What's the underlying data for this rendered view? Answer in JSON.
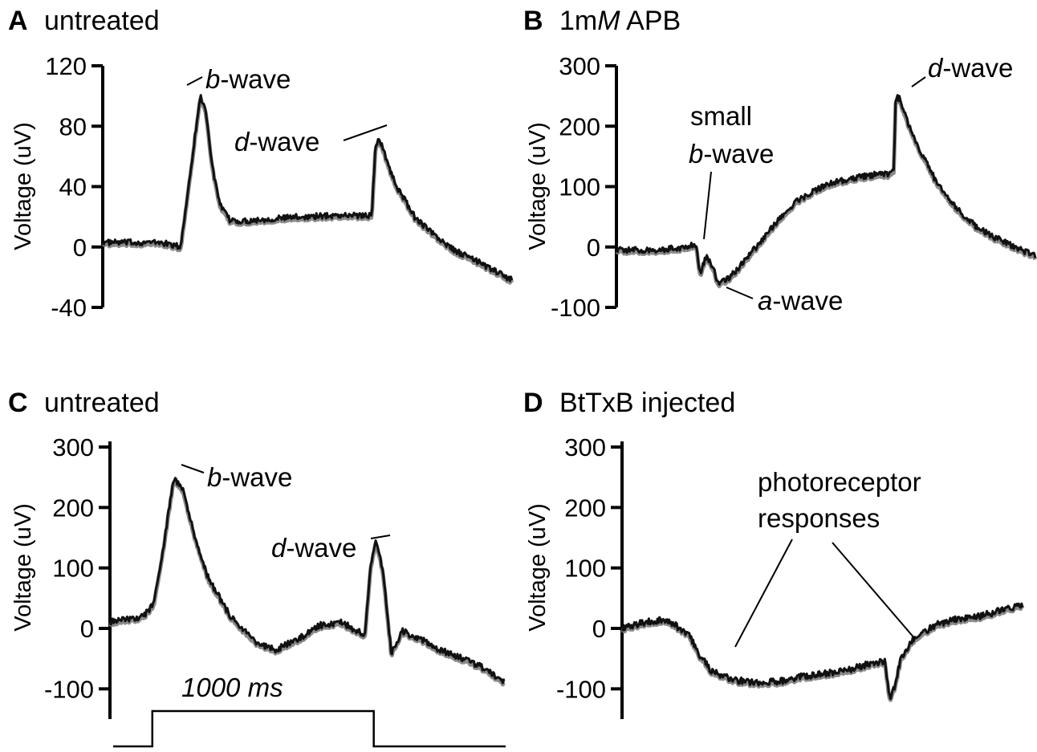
{
  "chart_data": [
    {
      "type": "line",
      "letter": "A",
      "title": "untreated",
      "ylabel": "Voltage (uV)",
      "xlabel": "",
      "ylim": [
        -40,
        120
      ],
      "yticks": [
        -40,
        0,
        40,
        80,
        120
      ],
      "ytick_labels": [
        "-40",
        "0",
        "40",
        "80",
        "120"
      ],
      "x_unit": "ms",
      "xlim": [
        -400,
        1700
      ],
      "grid": false,
      "series": [
        {
          "x": [
            -400,
            -100,
            0,
            60,
            100,
            130,
            160,
            200,
            250,
            300,
            400,
            600,
            800,
            980,
            1000,
            1020,
            1050,
            1100,
            1200,
            1300,
            1400,
            1500,
            1600,
            1700
          ],
          "y": [
            3,
            3,
            0,
            60,
            100,
            90,
            55,
            28,
            18,
            17,
            18,
            20,
            21,
            21,
            68,
            72,
            60,
            42,
            20,
            8,
            -2,
            -8,
            -15,
            -22
          ]
        }
      ],
      "annotations": [
        {
          "italic": "b",
          "text": "-wave"
        },
        {
          "italic": "d",
          "text": "-wave"
        }
      ]
    },
    {
      "type": "line",
      "letter": "B",
      "title": "1m",
      "title_italic": "M",
      "title_rest": " APB",
      "ylabel": "Voltage (uV)",
      "xlabel": "",
      "ylim": [
        -100,
        300
      ],
      "yticks": [
        -100,
        0,
        100,
        200,
        300
      ],
      "ytick_labels": [
        "-100",
        "0",
        "100",
        "200",
        "300"
      ],
      "x_unit": "ms",
      "xlim": [
        -400,
        1700
      ],
      "grid": false,
      "series": [
        {
          "x": [
            -400,
            -200,
            -50,
            0,
            20,
            50,
            80,
            110,
            150,
            200,
            300,
            400,
            500,
            600,
            700,
            800,
            900,
            970,
            990,
            1000,
            1020,
            1050,
            1100,
            1200,
            1300,
            1400,
            1500,
            1600,
            1700
          ],
          "y": [
            -5,
            -5,
            0,
            5,
            -45,
            -15,
            -30,
            -60,
            -55,
            -40,
            0,
            40,
            75,
            95,
            108,
            115,
            120,
            120,
            125,
            250,
            245,
            215,
            175,
            110,
            65,
            35,
            15,
            0,
            -15
          ]
        }
      ],
      "annotations": [
        {
          "line1": "small",
          "italic": "b",
          "text": "-wave"
        },
        {
          "italic": "a",
          "text": "-wave"
        },
        {
          "italic": "d",
          "text": "-wave"
        }
      ]
    },
    {
      "type": "line",
      "letter": "C",
      "title": "untreated",
      "ylabel": "Voltage (uV)",
      "xlabel": "",
      "ylim": [
        -150,
        300
      ],
      "yticks": [
        -100,
        0,
        100,
        200,
        300
      ],
      "ytick_labels": [
        "-100",
        "0",
        "100",
        "200",
        "300"
      ],
      "x_unit": "ms",
      "xlim": [
        -200,
        1600
      ],
      "grid": false,
      "series": [
        {
          "x": [
            -200,
            -50,
            0,
            50,
            90,
            130,
            180,
            250,
            350,
            450,
            550,
            650,
            750,
            850,
            960,
            985,
            1010,
            1040,
            1080,
            1130,
            1200,
            1300,
            1400,
            1500,
            1600
          ],
          "y": [
            10,
            20,
            40,
            150,
            250,
            230,
            160,
            80,
            20,
            -20,
            -35,
            -20,
            5,
            10,
            -10,
            100,
            145,
            100,
            -40,
            -5,
            -15,
            -35,
            -50,
            -65,
            -90
          ]
        }
      ],
      "stimulus": {
        "label": "1000 ms",
        "on": 0,
        "off": 1000
      },
      "annotations": [
        {
          "italic": "b",
          "text": "-wave"
        },
        {
          "italic": "d",
          "text": "-wave"
        }
      ]
    },
    {
      "type": "line",
      "letter": "D",
      "title": "BtTxB injected",
      "ylabel": "Voltage (uV)",
      "xlabel": "",
      "ylim": [
        -150,
        300
      ],
      "yticks": [
        -100,
        0,
        100,
        200,
        300
      ],
      "ytick_labels": [
        "-100",
        "0",
        "100",
        "200",
        "300"
      ],
      "x_unit": "ms",
      "xlim": [
        -200,
        1600
      ],
      "grid": false,
      "series": [
        {
          "x": [
            -200,
            -100,
            0,
            100,
            150,
            200,
            300,
            400,
            500,
            600,
            700,
            800,
            900,
            950,
            980,
            1000,
            1020,
            1050,
            1100,
            1200,
            1300,
            1400,
            1500,
            1600
          ],
          "y": [
            0,
            10,
            15,
            -10,
            -45,
            -70,
            -85,
            -90,
            -88,
            -80,
            -75,
            -70,
            -60,
            -55,
            -55,
            -115,
            -100,
            -50,
            -20,
            5,
            15,
            20,
            30,
            40
          ]
        }
      ],
      "annotations": [
        {
          "line1": "photoreceptor",
          "line2": "responses"
        }
      ]
    }
  ]
}
